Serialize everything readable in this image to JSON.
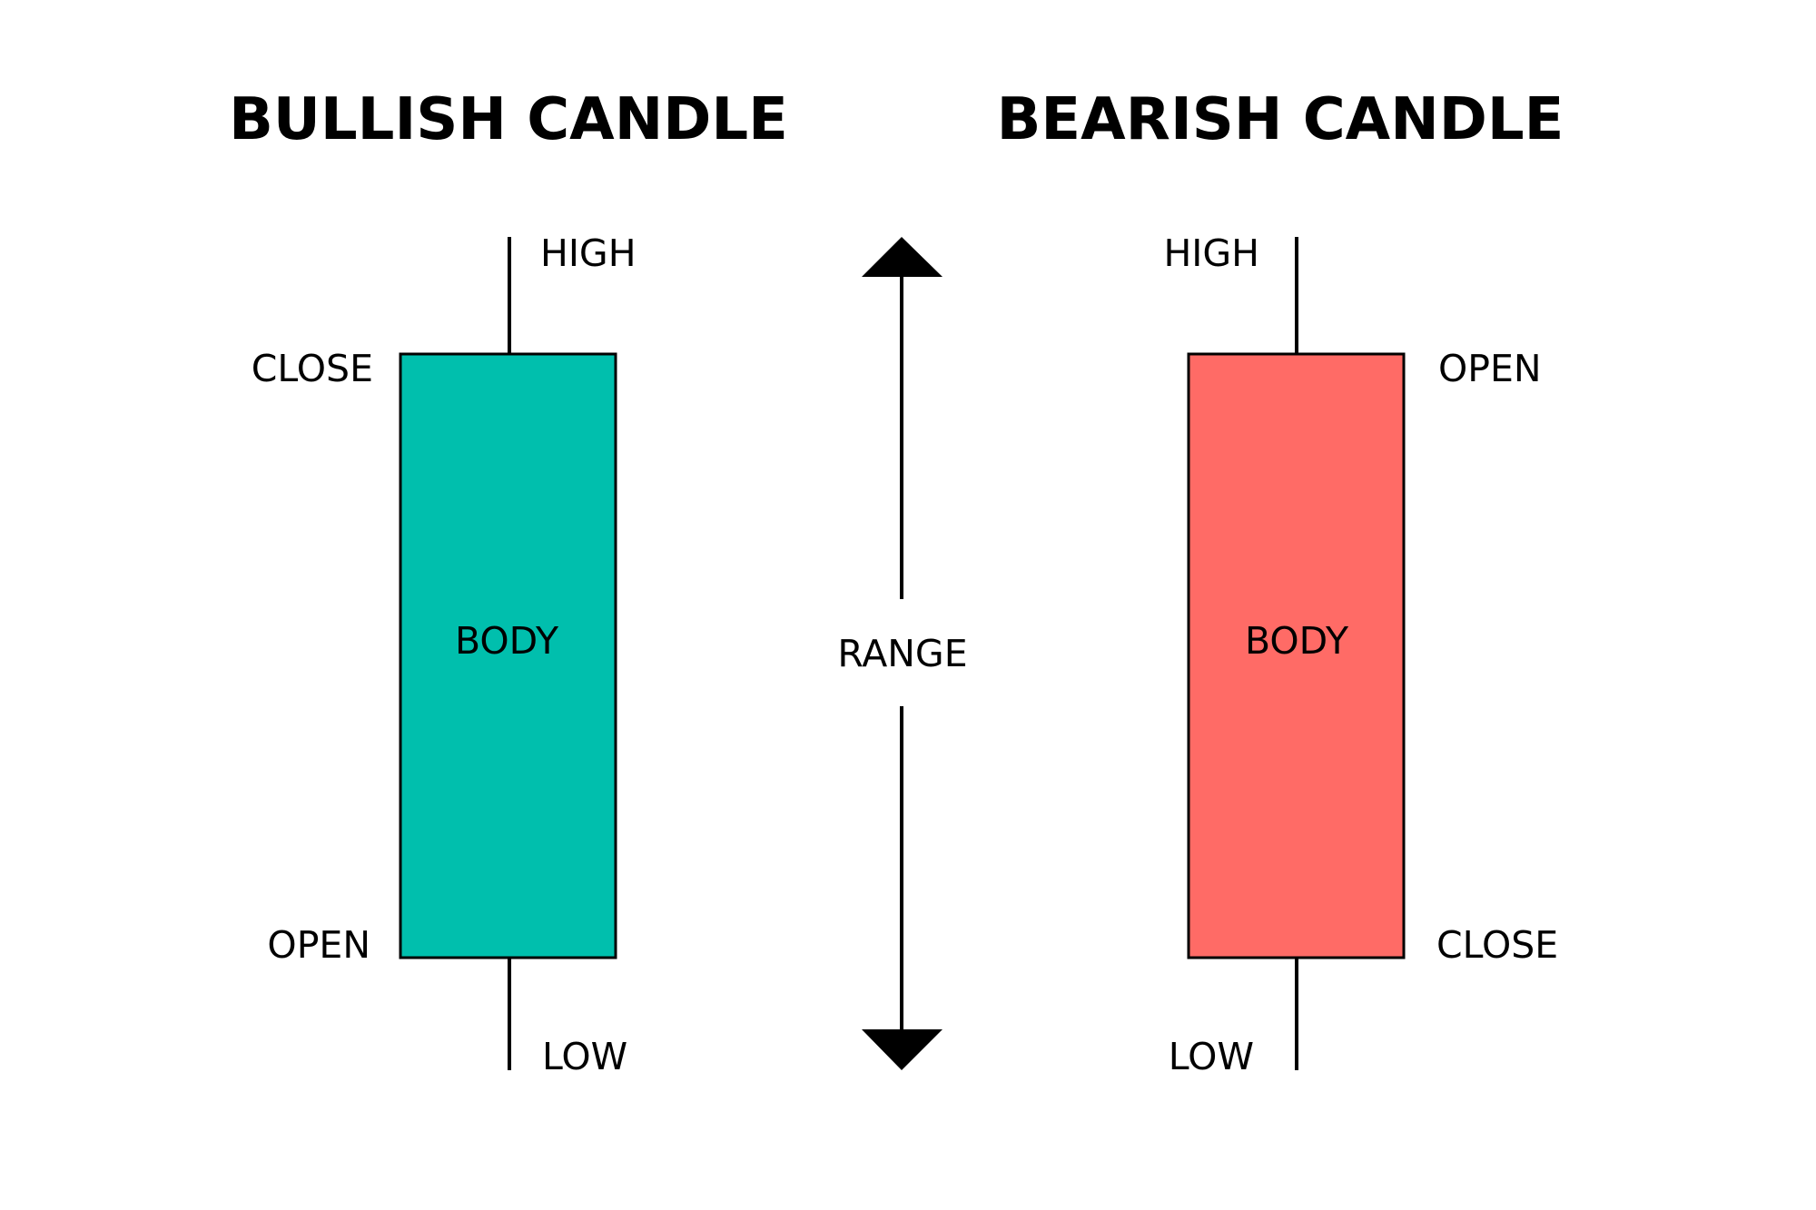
{
  "colors": {
    "bullish_body": "#00BFAD",
    "bearish_body": "#FF6B66",
    "stroke": "#000000",
    "background": "#FFFFFF"
  },
  "bullish": {
    "title": "BULLISH CANDLE",
    "high": "HIGH",
    "close": "CLOSE",
    "body": "BODY",
    "open": "OPEN",
    "low": "LOW"
  },
  "range": {
    "label": "RANGE",
    "top_icon": "arrow-up-icon",
    "bottom_icon": "arrow-down-icon"
  },
  "bearish": {
    "title": "BEARISH CANDLE",
    "high": "HIGH",
    "open": "OPEN",
    "body": "BODY",
    "close": "CLOSE",
    "low": "LOW"
  }
}
